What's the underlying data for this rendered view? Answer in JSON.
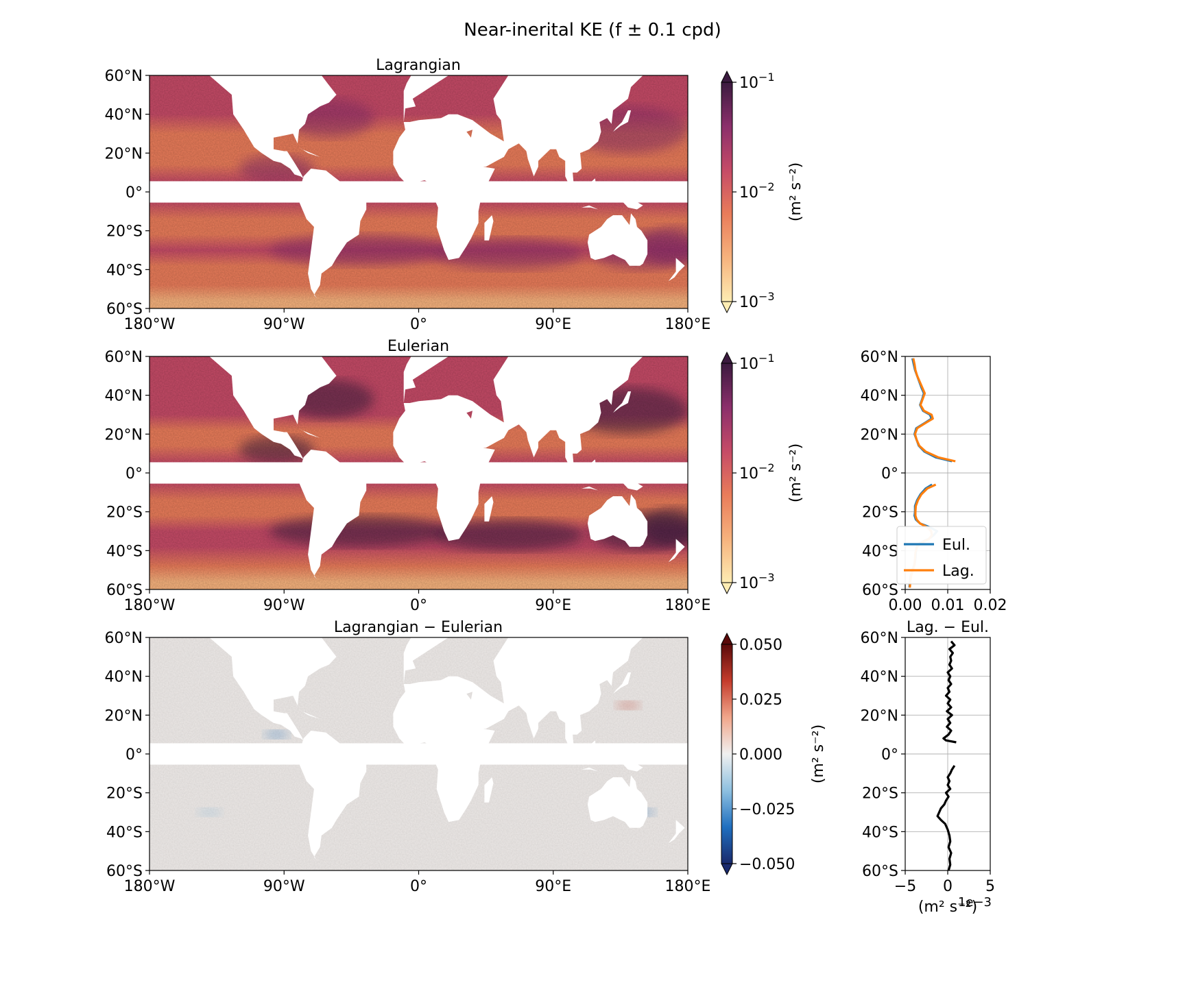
{
  "figure_title": "Near-inerital KE (f ± 0.1 cpd)",
  "colors": {
    "eulerian_line": "#1f77b4",
    "lagrangian_line": "#ff7f0e",
    "difference_line": "#000000",
    "land": "#ffffff",
    "ke_colormap": [
      "#fdecb3",
      "#f6b27d",
      "#e97c5a",
      "#c54b67",
      "#8b2f6b",
      "#3b1a3f"
    ],
    "diff_colormap": [
      "#1a2a6c",
      "#1f6fbf",
      "#8ec0e0",
      "#f0f0f0",
      "#f1a68b",
      "#c43c2c",
      "#5a0a0a"
    ]
  },
  "maps": [
    {
      "title": "Lagrangian",
      "lat_ticks": [
        "60°N",
        "40°N",
        "20°N",
        "0°",
        "20°S",
        "40°S",
        "60°S"
      ],
      "lon_ticks": [
        "180°W",
        "90°W",
        "0°",
        "90°E",
        "180°E"
      ],
      "colorbar": {
        "scale": "log",
        "ticks": [
          "10−1",
          "10−2",
          "10−3"
        ],
        "label": "(m² s⁻²)",
        "extend": "both",
        "range": [
          0.001,
          0.1
        ]
      }
    },
    {
      "title": "Eulerian",
      "lat_ticks": [
        "60°N",
        "40°N",
        "20°N",
        "0°",
        "20°S",
        "40°S",
        "60°S"
      ],
      "lon_ticks": [
        "180°W",
        "90°W",
        "0°",
        "90°E",
        "180°E"
      ],
      "colorbar": {
        "scale": "log",
        "ticks": [
          "10−1",
          "10−2",
          "10−3"
        ],
        "label": "(m² s⁻²)",
        "extend": "both",
        "range": [
          0.001,
          0.1
        ]
      }
    },
    {
      "title": "Lagrangian − Eulerian",
      "lat_ticks": [
        "60°N",
        "40°N",
        "20°N",
        "0°",
        "20°S",
        "40°S",
        "60°S"
      ],
      "lon_ticks": [
        "180°W",
        "90°W",
        "0°",
        "90°E",
        "180°E"
      ],
      "colorbar": {
        "scale": "linear",
        "ticks": [
          "0.050",
          "0.025",
          "0.000",
          "−0.025",
          "−0.050"
        ],
        "label": "(m² s⁻²)",
        "extend": "both",
        "range": [
          -0.05,
          0.05
        ]
      }
    }
  ],
  "chart_data": [
    {
      "type": "line",
      "title": "",
      "xlim": [
        0.0,
        0.02
      ],
      "ylim": [
        -60,
        60
      ],
      "x_ticks": [
        "0.00",
        "0.01",
        "0.02"
      ],
      "y_ticks": [
        "60°N",
        "40°N",
        "20°N",
        "0°",
        "20°S",
        "40°S",
        "60°S"
      ],
      "grid": true,
      "legend": "lower-right",
      "series": [
        {
          "name": "Eul.",
          "lat": [
            -59,
            -56,
            -53,
            -50,
            -47,
            -44,
            -41,
            -38,
            -36,
            -34,
            -32,
            -30,
            -28,
            -26,
            -24,
            -22,
            -20,
            -17,
            -14,
            -11,
            -8,
            -6,
            6,
            8,
            11,
            14,
            17,
            20,
            23,
            26,
            28,
            30,
            32,
            35,
            38,
            41,
            44,
            47,
            50,
            53,
            56,
            59
          ],
          "values": [
            0.001,
            0.0011,
            0.0013,
            0.0017,
            0.0022,
            0.0024,
            0.0025,
            0.0027,
            0.0035,
            0.0055,
            0.0067,
            0.0075,
            0.0058,
            0.0035,
            0.0025,
            0.0022,
            0.0023,
            0.0023,
            0.0028,
            0.0036,
            0.0048,
            0.0063,
            0.011,
            0.0072,
            0.0045,
            0.0032,
            0.0027,
            0.0022,
            0.0026,
            0.0048,
            0.0062,
            0.0058,
            0.0042,
            0.0035,
            0.004,
            0.0044,
            0.0038,
            0.0033,
            0.0028,
            0.0023,
            0.002,
            0.0017
          ]
        },
        {
          "name": "Lag.",
          "lat": [
            -59,
            -56,
            -53,
            -50,
            -47,
            -44,
            -41,
            -38,
            -36,
            -34,
            -32,
            -30,
            -28,
            -26,
            -24,
            -22,
            -20,
            -17,
            -14,
            -11,
            -8,
            -6,
            6,
            8,
            11,
            14,
            17,
            20,
            23,
            26,
            28,
            30,
            32,
            35,
            38,
            41,
            44,
            47,
            50,
            53,
            56,
            59
          ],
          "values": [
            0.0011,
            0.0012,
            0.0014,
            0.0018,
            0.0022,
            0.0023,
            0.0024,
            0.0028,
            0.0038,
            0.0056,
            0.0063,
            0.0061,
            0.0052,
            0.0035,
            0.0027,
            0.0024,
            0.0024,
            0.0025,
            0.003,
            0.0038,
            0.0052,
            0.0072,
            0.0118,
            0.0078,
            0.0048,
            0.0033,
            0.0027,
            0.0023,
            0.0028,
            0.005,
            0.0065,
            0.0062,
            0.0044,
            0.0036,
            0.0041,
            0.0046,
            0.004,
            0.0034,
            0.0028,
            0.0024,
            0.0022,
            0.0019
          ]
        }
      ]
    },
    {
      "type": "line",
      "title": "Lag. − Eul.",
      "xlabel": "(m² s⁻²)",
      "x_offset_text": "1e−3",
      "xlim": [
        -5,
        5
      ],
      "ylim": [
        -60,
        60
      ],
      "x_ticks": [
        "−5",
        "0",
        "5"
      ],
      "y_ticks": [
        "60°N",
        "40°N",
        "20°N",
        "0°",
        "20°S",
        "40°S",
        "60°S"
      ],
      "grid": true,
      "series": [
        {
          "name": "",
          "lat": [
            -60,
            -57,
            -54,
            -51,
            -48,
            -45,
            -42,
            -39,
            -36,
            -34,
            -32,
            -30,
            -28,
            -26,
            -24,
            -22,
            -20,
            -18,
            -16,
            -14,
            -12,
            -10,
            -8,
            -6,
            6,
            7,
            8,
            10,
            12,
            14,
            16,
            18,
            20,
            22,
            24,
            26,
            28,
            30,
            32,
            34,
            36,
            38,
            40,
            42,
            44,
            46,
            48,
            50,
            52,
            54,
            56,
            58
          ],
          "values": [
            0.1,
            0.3,
            0.2,
            0.4,
            0.1,
            0.3,
            0.2,
            0.0,
            -0.3,
            -0.8,
            -1.2,
            -1.0,
            -0.8,
            -0.4,
            -0.2,
            0.1,
            -0.2,
            0.3,
            0.0,
            0.2,
            0.0,
            0.3,
            0.5,
            0.8,
            1.0,
            -0.2,
            -0.5,
            0.1,
            0.4,
            -0.1,
            0.3,
            0.0,
            0.5,
            -0.1,
            0.4,
            0.0,
            0.3,
            -0.2,
            0.2,
            0.0,
            0.4,
            0.1,
            0.3,
            0.0,
            0.5,
            0.2,
            0.4,
            0.3,
            0.6,
            0.2,
            0.8,
            0.4
          ]
        }
      ]
    }
  ]
}
